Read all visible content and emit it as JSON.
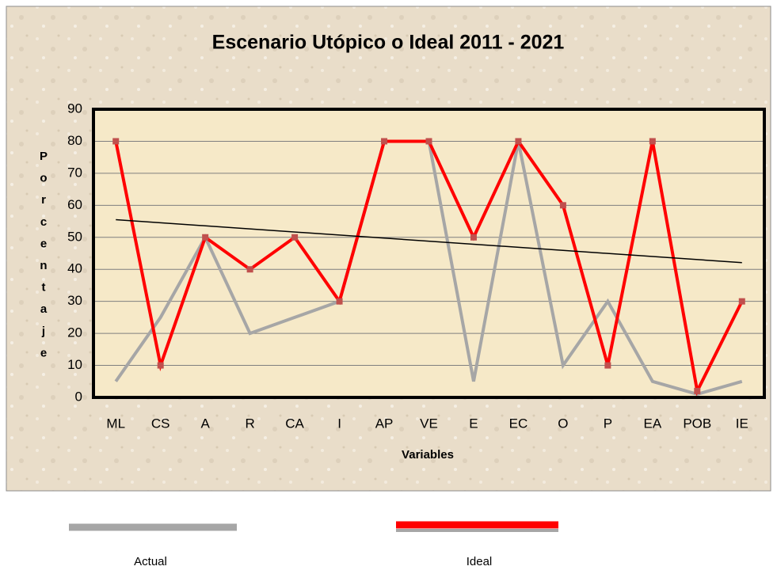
{
  "chart_data": {
    "type": "line",
    "title": "Escenario Utópico o Ideal 2011 - 2021",
    "x_label": "Variables",
    "y_label": "Porcentaje",
    "categories": [
      "ML",
      "CS",
      "A",
      "R",
      "CA",
      "I",
      "AP",
      "VE",
      "E",
      "EC",
      "O",
      "P",
      "EA",
      "POB",
      "IE"
    ],
    "series": [
      {
        "name": "Actual",
        "color": "#a6a6a6",
        "values": [
          5,
          25,
          50,
          20,
          25,
          30,
          80,
          80,
          5,
          80,
          10,
          30,
          5,
          1,
          5
        ]
      },
      {
        "name": "Ideal",
        "color": "#ff0000",
        "values": [
          80,
          10,
          50,
          40,
          50,
          30,
          80,
          80,
          50,
          80,
          60,
          10,
          80,
          2,
          30
        ]
      }
    ],
    "trendline": true,
    "ylim": [
      0,
      90
    ],
    "yticks": [
      0,
      10,
      20,
      30,
      40,
      50,
      60,
      70,
      80,
      90
    ],
    "grid": true
  }
}
